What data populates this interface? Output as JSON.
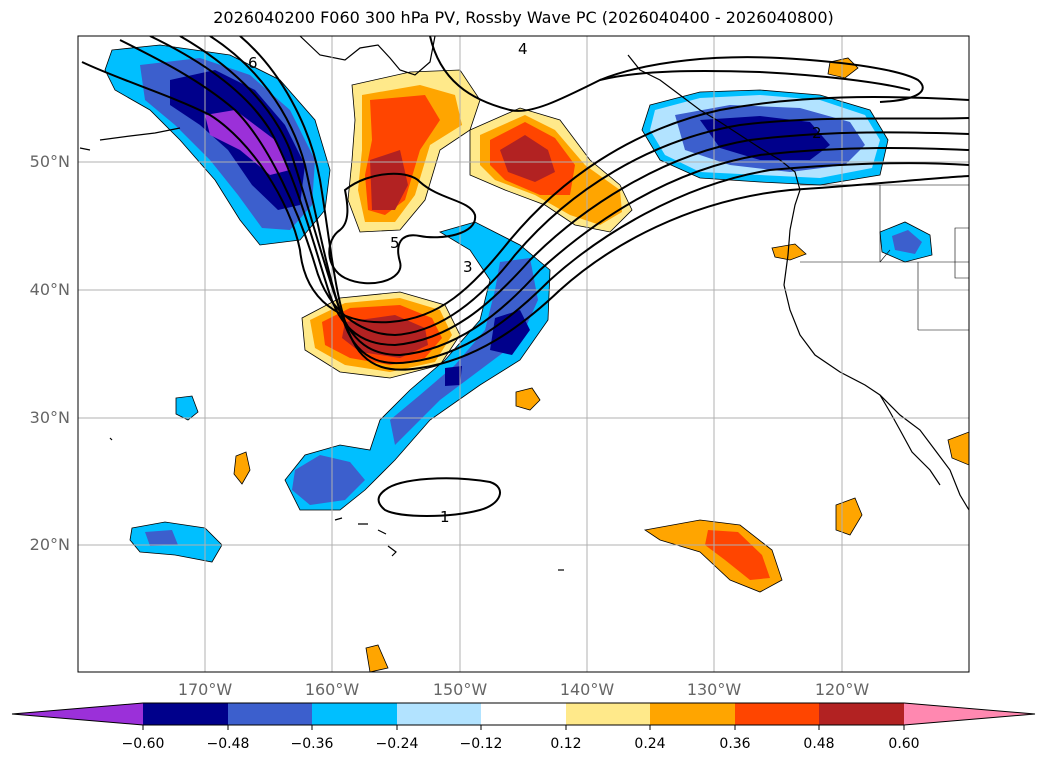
{
  "title": "2026040200 F060 300 hPa PV, Rossby Wave PC (2026040400 - 2026040800)",
  "map": {
    "projection": "Mercator (cylindrical)",
    "region": "North Pacific and western North America",
    "latitude_labels": [
      "50°N",
      "40°N",
      "30°N",
      "20°N"
    ],
    "longitude_labels": [
      "170°W",
      "160°W",
      "150°W",
      "140°W",
      "130°W",
      "120°W"
    ],
    "contour_labels": [
      "6",
      "4",
      "5",
      "3",
      "1",
      "2"
    ]
  },
  "colorbar": {
    "ticks": [
      "−0.60",
      "−0.48",
      "−0.36",
      "−0.24",
      "−0.12",
      "0.12",
      "0.24",
      "0.36",
      "0.48",
      "0.60"
    ],
    "colors": [
      "#9b30d9",
      "#00008b",
      "#3c5fcd",
      "#00bfff",
      "#b2e3ff",
      "#ffffff",
      "#ffe98a",
      "#ffa500",
      "#ff4500",
      "#b22222",
      "#ff88b0"
    ]
  },
  "legend_colors": {
    "neg_extreme": "#9b30d9",
    "pos_extreme": "#ff88b0"
  }
}
